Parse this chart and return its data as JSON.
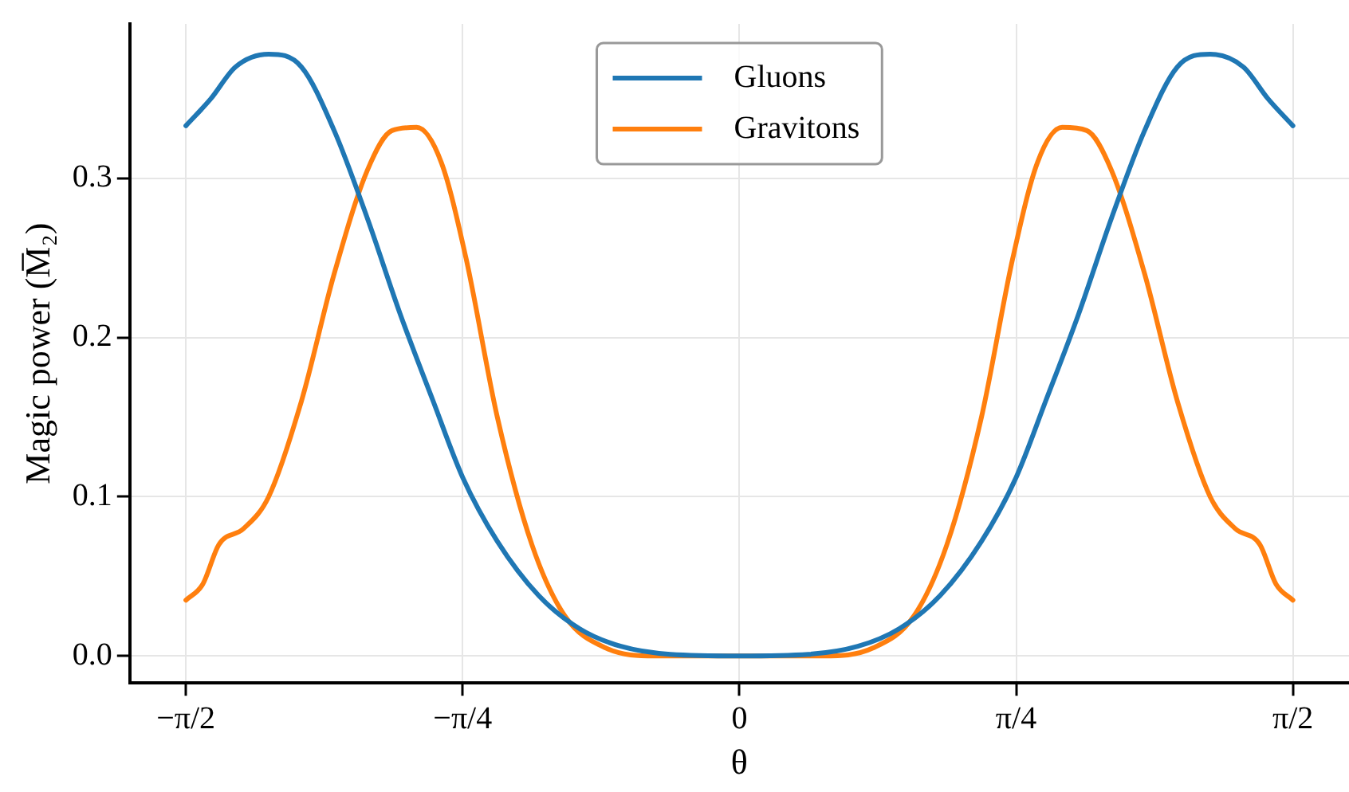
{
  "chart_data": {
    "type": "line",
    "xlabel": "θ",
    "ylabel": "Magic power (M̅₂)",
    "xlim": [
      -1.73,
      1.73
    ],
    "ylim": [
      -0.017,
      0.397
    ],
    "xticks": [
      {
        "value": -1.5708,
        "label": "−π/2"
      },
      {
        "value": -0.7854,
        "label": "−π/4"
      },
      0,
      {
        "value": 0.7854,
        "label": "π/4"
      },
      {
        "value": 1.5708,
        "label": "π/2"
      }
    ],
    "yticks": [
      {
        "value": 0,
        "label": "0.0"
      },
      0.1,
      0.2,
      0.3
    ],
    "grid": true,
    "legend": "top",
    "marker": "none",
    "line_style": "solid",
    "series": [
      {
        "name": "Gluons",
        "color": "#1f77b4",
        "x": [
          -1.5708,
          -1.5,
          -1.43,
          -1.336,
          -1.243,
          -1.15,
          -1.056,
          -0.963,
          -0.869,
          -0.785,
          -0.687,
          -0.57,
          -0.453,
          -0.336,
          -0.196,
          0,
          0.196,
          0.336,
          0.453,
          0.57,
          0.687,
          0.785,
          0.869,
          0.963,
          1.056,
          1.15,
          1.243,
          1.336,
          1.43,
          1.5,
          1.5708
        ],
        "values": [
          0.333,
          0.35,
          0.37,
          0.378,
          0.37,
          0.33,
          0.275,
          0.215,
          0.16,
          0.112,
          0.072,
          0.038,
          0.017,
          0.006,
          0.001,
          0,
          0.001,
          0.006,
          0.017,
          0.038,
          0.072,
          0.112,
          0.16,
          0.215,
          0.275,
          0.33,
          0.37,
          0.378,
          0.37,
          0.35,
          0.333
        ]
      },
      {
        "name": "Gravitons",
        "color": "#ff7f0e",
        "x": [
          -1.5708,
          -1.523,
          -1.477,
          -1.407,
          -1.336,
          -1.243,
          -1.15,
          -1.056,
          -0.986,
          -0.916,
          -0.846,
          -0.776,
          -0.687,
          -0.589,
          -0.495,
          -0.379,
          -0.238,
          0,
          0.238,
          0.379,
          0.495,
          0.589,
          0.687,
          0.776,
          0.846,
          0.916,
          0.986,
          1.056,
          1.15,
          1.243,
          1.336,
          1.407,
          1.477,
          1.523,
          1.5708
        ],
        "values": [
          0.035,
          0.045,
          0.07,
          0.08,
          0.1,
          0.16,
          0.24,
          0.305,
          0.33,
          0.332,
          0.31,
          0.25,
          0.15,
          0.07,
          0.025,
          0.005,
          0,
          0,
          0,
          0.005,
          0.025,
          0.07,
          0.15,
          0.25,
          0.31,
          0.332,
          0.33,
          0.305,
          0.24,
          0.16,
          0.1,
          0.08,
          0.07,
          0.045,
          0.035
        ]
      }
    ]
  }
}
